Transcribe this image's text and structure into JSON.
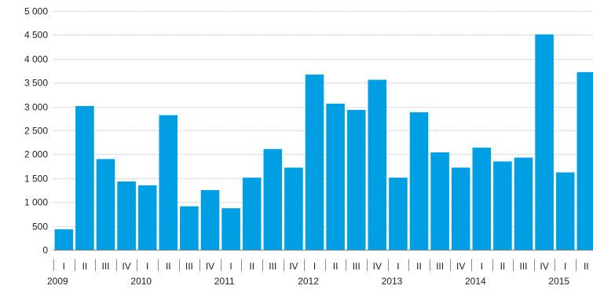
{
  "chart_data": {
    "type": "bar",
    "categories": [
      "I",
      "II",
      "III",
      "IV",
      "I",
      "II",
      "III",
      "IV",
      "I",
      "II",
      "III",
      "IV",
      "I",
      "II",
      "III",
      "IV",
      "I",
      "II",
      "III",
      "IV",
      "I",
      "II",
      "III",
      "IV",
      "I",
      "II"
    ],
    "years": [
      {
        "label": "2009",
        "start_index": 0
      },
      {
        "label": "2010",
        "start_index": 4
      },
      {
        "label": "2011",
        "start_index": 8
      },
      {
        "label": "2012",
        "start_index": 12
      },
      {
        "label": "2013",
        "start_index": 16
      },
      {
        "label": "2014",
        "start_index": 20
      },
      {
        "label": "2015",
        "start_index": 24
      }
    ],
    "values": [
      430,
      3010,
      1900,
      1430,
      1350,
      2820,
      910,
      1250,
      870,
      1510,
      2110,
      1720,
      3670,
      3060,
      2930,
      3560,
      1510,
      2880,
      2040,
      1720,
      2140,
      1850,
      1930,
      4510,
      1620,
      3720
    ],
    "ylim": [
      0,
      5000
    ],
    "yticks": [
      0,
      500,
      1000,
      1500,
      2000,
      2500,
      3000,
      3500,
      4000,
      4500,
      5000
    ],
    "ytick_labels": [
      "0",
      "500",
      "1 000",
      "1 500",
      "2 000",
      "2 500",
      "3 000",
      "3 500",
      "4 000",
      "4 500",
      "5 000"
    ],
    "grid": true,
    "bar_color": "#009fe3",
    "title": "",
    "xlabel": "",
    "ylabel": ""
  }
}
